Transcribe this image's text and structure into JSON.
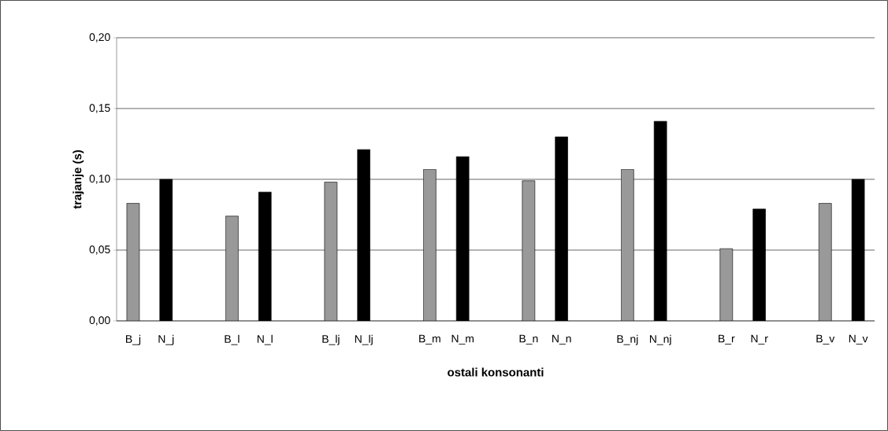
{
  "chart_data": {
    "type": "bar",
    "xlabel": "ostali konsonanti",
    "ylabel": "trajanje (s)",
    "categories": [
      "B_j",
      "N_j",
      null,
      "B_l",
      "N_l",
      null,
      "B_lj",
      "N_lj",
      null,
      "B_m",
      "N_m",
      null,
      "B_n",
      "N_n",
      null,
      "B_nj",
      "N_nj",
      null,
      "B_r",
      "N_r",
      null,
      "B_v",
      "N_v"
    ],
    "values": [
      0.083,
      0.1,
      null,
      0.074,
      0.091,
      null,
      0.098,
      0.121,
      null,
      0.107,
      0.116,
      null,
      0.099,
      0.13,
      null,
      0.107,
      0.141,
      null,
      0.051,
      0.079,
      null,
      0.083,
      0.1
    ],
    "colors": [
      "#999999",
      "#000000",
      null,
      "#999999",
      "#000000",
      null,
      "#999999",
      "#000000",
      null,
      "#999999",
      "#000000",
      null,
      "#999999",
      "#000000",
      null,
      "#999999",
      "#000000",
      null,
      "#999999",
      "#000000",
      null,
      "#999999",
      "#000000"
    ],
    "ylim": [
      0,
      0.2
    ],
    "yticks": [
      {
        "value": 0,
        "label": "0,00"
      },
      {
        "value": 0.05,
        "label": "0,05"
      },
      {
        "value": 0.1,
        "label": "0,10"
      },
      {
        "value": 0.15,
        "label": "0,15"
      },
      {
        "value": 0.2,
        "label": "0,20"
      }
    ],
    "grid": "y"
  }
}
